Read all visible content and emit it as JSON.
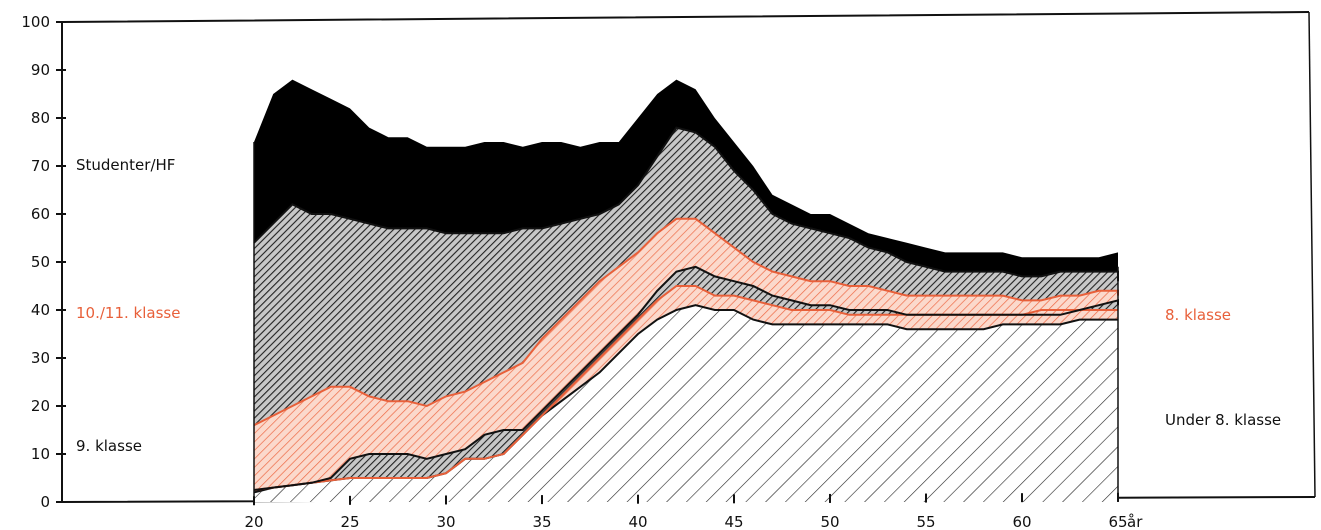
{
  "chart_data": {
    "type": "area",
    "stacked": true,
    "xlabel": "år",
    "xlim": [
      20,
      65
    ],
    "ylim": [
      0,
      100
    ],
    "x_ticks": [
      "20",
      "25",
      "30",
      "35",
      "40",
      "45",
      "50",
      "55",
      "60",
      "65"
    ],
    "y_ticks": [
      "0",
      "10",
      "20",
      "30",
      "40",
      "50",
      "60",
      "70",
      "80",
      "90",
      "100"
    ],
    "grid": false,
    "x": [
      20,
      21,
      22,
      23,
      24,
      25,
      26,
      27,
      28,
      29,
      30,
      31,
      32,
      33,
      34,
      35,
      36,
      37,
      38,
      39,
      40,
      41,
      42,
      43,
      44,
      45,
      46,
      47,
      48,
      49,
      50,
      51,
      52,
      53,
      54,
      55,
      56,
      57,
      58,
      59,
      60,
      61,
      62,
      63,
      64,
      65,
      66
    ],
    "series": [
      {
        "name": "Under 8. klasse",
        "color": "#111111",
        "cumulative": [
          2,
          3,
          3.5,
          4,
          4.5,
          5,
          5,
          5,
          5,
          5,
          6,
          9,
          9,
          10,
          14,
          18,
          21,
          24,
          27,
          31,
          35,
          38,
          40,
          41,
          40,
          40,
          38,
          37,
          37,
          37,
          37,
          37,
          37,
          37,
          36,
          36,
          36,
          36,
          36,
          37,
          37,
          37,
          37,
          38,
          38,
          38,
          38
        ]
      },
      {
        "name": "8. klasse",
        "color": "#e8603a",
        "cumulative": [
          2.5,
          3,
          3.5,
          4,
          4.5,
          5,
          5,
          5,
          5,
          5,
          6,
          9,
          9,
          10,
          14,
          18,
          22,
          26,
          30,
          34,
          38,
          42,
          45,
          45,
          43,
          43,
          42,
          41,
          40,
          40,
          40,
          39,
          39,
          39,
          39,
          39,
          39,
          39,
          39,
          39,
          39,
          40,
          40,
          40,
          40,
          40,
          40
        ]
      },
      {
        "name": "9. klasse",
        "color": "#111111",
        "cumulative": [
          2.5,
          3,
          3.5,
          4,
          5,
          9,
          10,
          10,
          10,
          9,
          10,
          11,
          14,
          15,
          15,
          19,
          23,
          27,
          31,
          35,
          39,
          44,
          48,
          49,
          47,
          46,
          45,
          43,
          42,
          41,
          41,
          40,
          40,
          40,
          39,
          39,
          39,
          39,
          39,
          39,
          39,
          39,
          39,
          40,
          41,
          42,
          41
        ]
      },
      {
        "name": "10./11. klasse",
        "color": "#e8603a",
        "cumulative": [
          16,
          18,
          20,
          22,
          24,
          24,
          22,
          21,
          21,
          20,
          22,
          23,
          25,
          27,
          29,
          34,
          38,
          42,
          46,
          49,
          52,
          56,
          59,
          59,
          56,
          53,
          50,
          48,
          47,
          46,
          46,
          45,
          45,
          44,
          43,
          43,
          43,
          43,
          43,
          43,
          42,
          42,
          43,
          43,
          44,
          44,
          43
        ]
      },
      {
        "name": "Studenter/HF",
        "color": "#111111",
        "cumulative": [
          54,
          58,
          62,
          60,
          60,
          59,
          58,
          57,
          57,
          57,
          56,
          56,
          56,
          56,
          57,
          57,
          58,
          59,
          60,
          62,
          66,
          72,
          78,
          77,
          74,
          69,
          65,
          60,
          58,
          57,
          56,
          55,
          53,
          52,
          50,
          49,
          48,
          48,
          48,
          48,
          47,
          47,
          48,
          48,
          48,
          48,
          46
        ]
      }
    ],
    "total": [
      75,
      85,
      88,
      86,
      84,
      82,
      78,
      76,
      76,
      74,
      74,
      74,
      75,
      75,
      74,
      75,
      75,
      74,
      75,
      75,
      80,
      85,
      88,
      86,
      80,
      75,
      70,
      64,
      62,
      60,
      60,
      58,
      56,
      55,
      54,
      53,
      52,
      52,
      52,
      52,
      51,
      51,
      51,
      51,
      51,
      52,
      49
    ],
    "labels_left": [
      {
        "text": "Studenter/HF",
        "color": "#111111"
      },
      {
        "text": "10./11. klasse",
        "color": "#e8603a"
      },
      {
        "text": "9. klasse",
        "color": "#111111"
      }
    ],
    "labels_right": [
      {
        "text": "8. klasse",
        "color": "#e8603a"
      },
      {
        "text": "Under 8. klasse",
        "color": "#111111"
      }
    ]
  }
}
